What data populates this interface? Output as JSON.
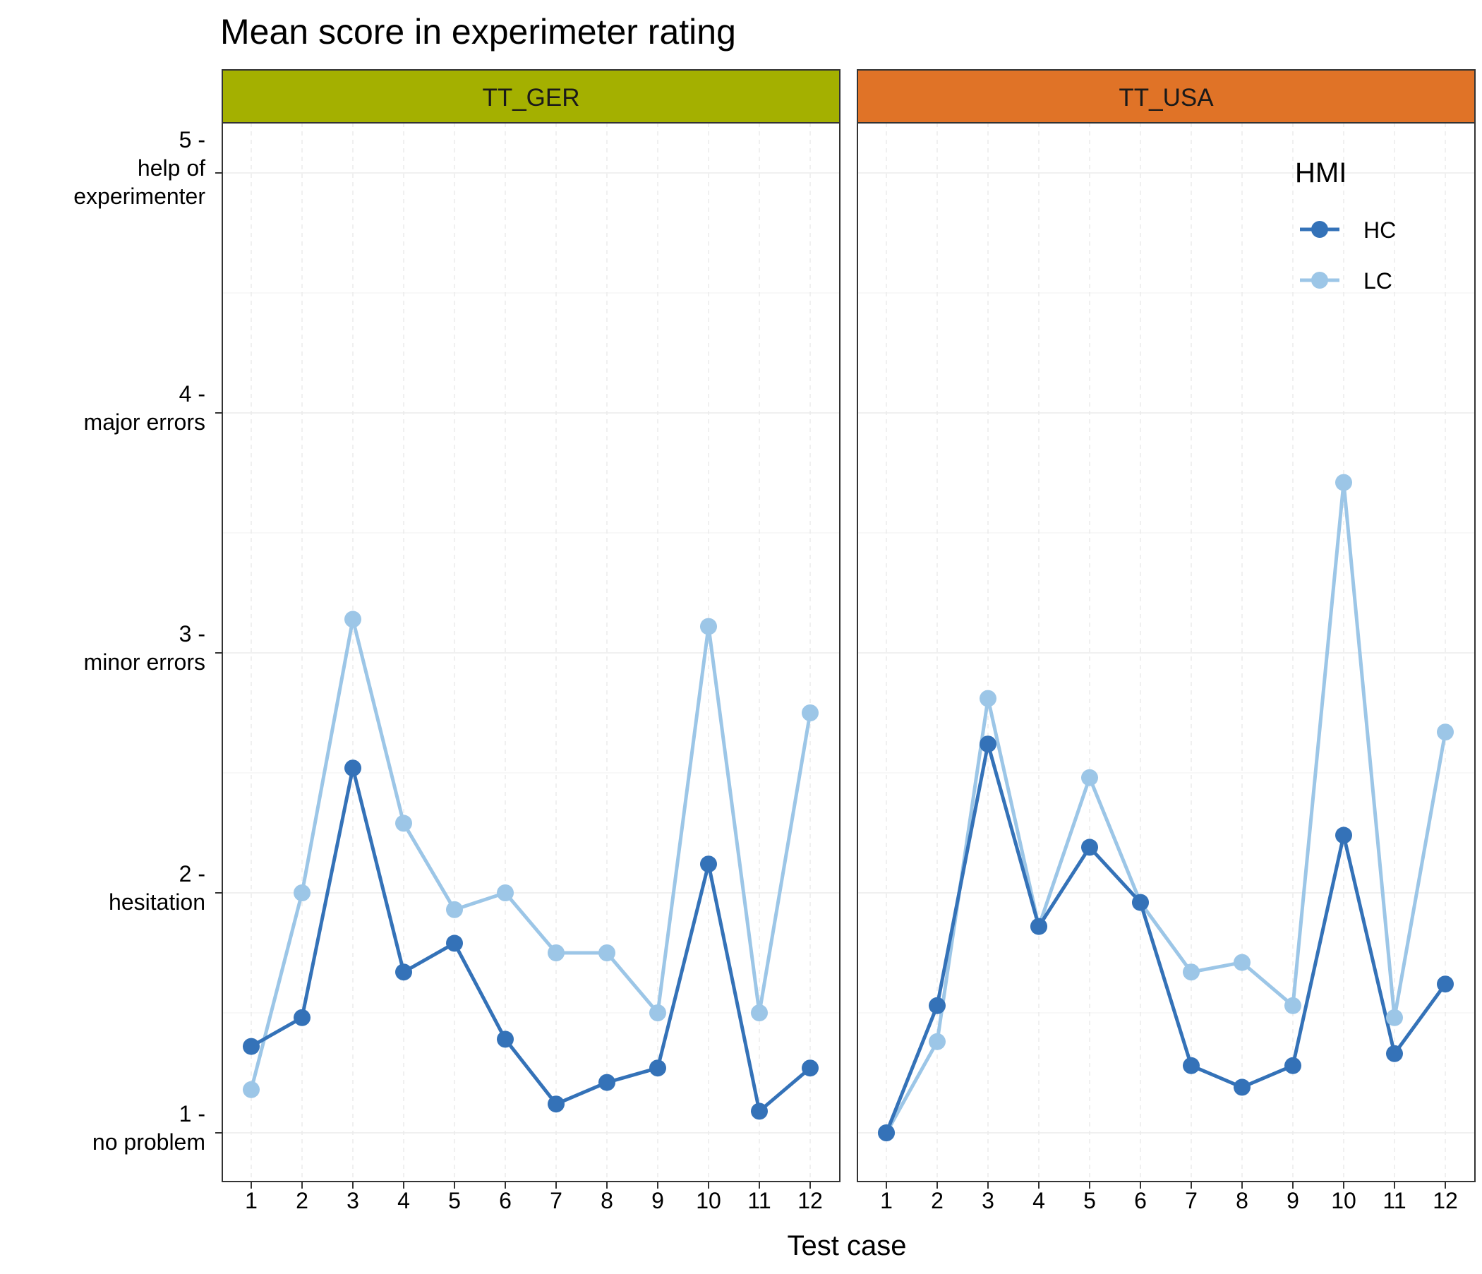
{
  "chart_data": {
    "type": "line",
    "title": "Mean score in experimeter rating",
    "xlabel": "Test case",
    "ylabel": "",
    "x": [
      1,
      2,
      3,
      4,
      5,
      6,
      7,
      8,
      9,
      10,
      11,
      12
    ],
    "x_tick_labels": [
      "1",
      "2",
      "3",
      "4",
      "5",
      "6",
      "7",
      "8",
      "9",
      "10",
      "11",
      "12"
    ],
    "ylim": [
      0.8,
      5.2
    ],
    "y_ticks": [
      {
        "value": 1,
        "lines": [
          "1 -",
          "no problem"
        ]
      },
      {
        "value": 2,
        "lines": [
          "2 -",
          "hesitation"
        ]
      },
      {
        "value": 3,
        "lines": [
          "3 -",
          "minor errors"
        ]
      },
      {
        "value": 4,
        "lines": [
          "4 -",
          "major errors"
        ]
      },
      {
        "value": 5,
        "lines": [
          "5 -",
          "help of",
          "experimenter"
        ]
      }
    ],
    "grid": true,
    "legend": {
      "title": "HMI",
      "position": "top-right",
      "entries": [
        {
          "name": "HC",
          "color": "#3472b8"
        },
        {
          "name": "LC",
          "color": "#9cc6e7"
        }
      ]
    },
    "panels": [
      {
        "strip_label": "TT_GER",
        "strip_color": "#a4b000",
        "series": [
          {
            "name": "HC",
            "color": "#3472b8",
            "values": [
              1.36,
              1.48,
              2.52,
              1.67,
              1.79,
              1.39,
              1.12,
              1.21,
              1.27,
              2.12,
              1.09,
              1.27
            ]
          },
          {
            "name": "LC",
            "color": "#9cc6e7",
            "values": [
              1.18,
              2.0,
              3.14,
              2.29,
              1.93,
              2.0,
              1.75,
              1.75,
              1.5,
              3.11,
              1.5,
              2.75
            ]
          }
        ]
      },
      {
        "strip_label": "TT_USA",
        "strip_color": "#e07327",
        "series": [
          {
            "name": "HC",
            "color": "#3472b8",
            "values": [
              1.0,
              1.53,
              2.62,
              1.86,
              2.19,
              1.96,
              1.28,
              1.19,
              1.28,
              2.24,
              1.33,
              1.62
            ]
          },
          {
            "name": "LC",
            "color": "#9cc6e7",
            "values": [
              1.0,
              1.38,
              2.81,
              1.86,
              2.48,
              1.96,
              1.67,
              1.71,
              1.53,
              3.71,
              1.48,
              2.67
            ]
          }
        ]
      }
    ]
  }
}
